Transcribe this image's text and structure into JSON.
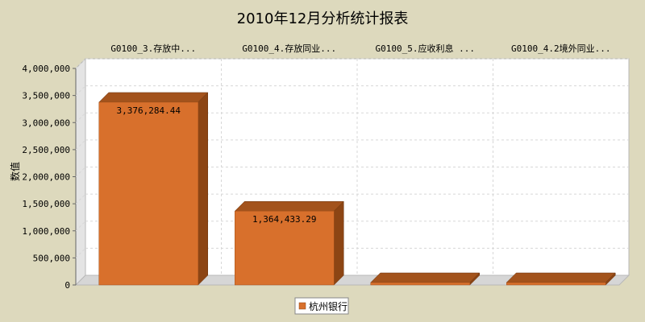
{
  "colors": {
    "background": "#ddd9bd",
    "plot_face": "#ffffff",
    "plot_wall": "#e4e4e4",
    "plot_floor": "#d6d6d6",
    "bar_front": "#d8702c",
    "bar_top": "#a3531c",
    "bar_side": "#8c4514",
    "grid": "#d7d7d7"
  },
  "chart_data": {
    "type": "bar",
    "title": "2010年12月分析统计报表",
    "ylabel": "数值",
    "xlabel": "",
    "categories": [
      "G0100_3.存放中...",
      "G0100_4.存放同业...",
      "G0100_5.应收利息 ...",
      "G0100_4.2境外同业..."
    ],
    "series": [
      {
        "name": "杭州银行",
        "values": [
          3376284.44,
          1364433.29,
          0,
          0
        ],
        "labels": [
          "3,376,284.44",
          "1,364,433.29",
          "",
          ""
        ]
      }
    ],
    "ylim": [
      0,
      4000000
    ],
    "yticks": [
      0,
      500000,
      1000000,
      1500000,
      2000000,
      2500000,
      3000000,
      3500000,
      4000000
    ],
    "ytick_labels": [
      "0",
      "500,000",
      "1,000,000",
      "1,500,000",
      "2,000,000",
      "2,500,000",
      "3,000,000",
      "3,500,000",
      "4,000,000"
    ],
    "category_axis_position": "top",
    "grid": true,
    "legend_position": "bottom-center",
    "style": "3d"
  }
}
